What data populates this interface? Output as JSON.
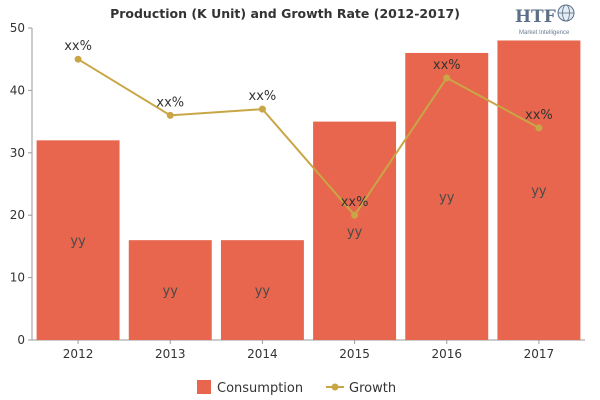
{
  "chart_data": {
    "type": "bar",
    "title": "Production (K Unit) and Growth Rate (2012-2017)",
    "categories": [
      "2012",
      "2013",
      "2014",
      "2015",
      "2016",
      "2017"
    ],
    "ylim": [
      0,
      50
    ],
    "yticks": [
      "0",
      "10",
      "20",
      "30",
      "40",
      "50"
    ],
    "grid": false,
    "legend_position": "bottom",
    "series": [
      {
        "name": "Consumption",
        "type": "bar",
        "color": "#e8664d",
        "values": [
          32,
          16,
          16,
          35,
          46,
          48
        ],
        "labels": [
          "yy",
          "yy",
          "yy",
          "yy",
          "yy",
          "yy"
        ]
      },
      {
        "name": "Growth",
        "type": "line",
        "color": "#c9a645",
        "values": [
          45,
          36,
          37,
          20,
          42,
          34
        ],
        "labels": [
          "xx%",
          "xx%",
          "xx%",
          "xx%",
          "xx%",
          "xx%"
        ]
      }
    ]
  },
  "logo": {
    "mark": "HTF",
    "tagline": "Market Intelligence",
    "icon": "globe-icon"
  }
}
